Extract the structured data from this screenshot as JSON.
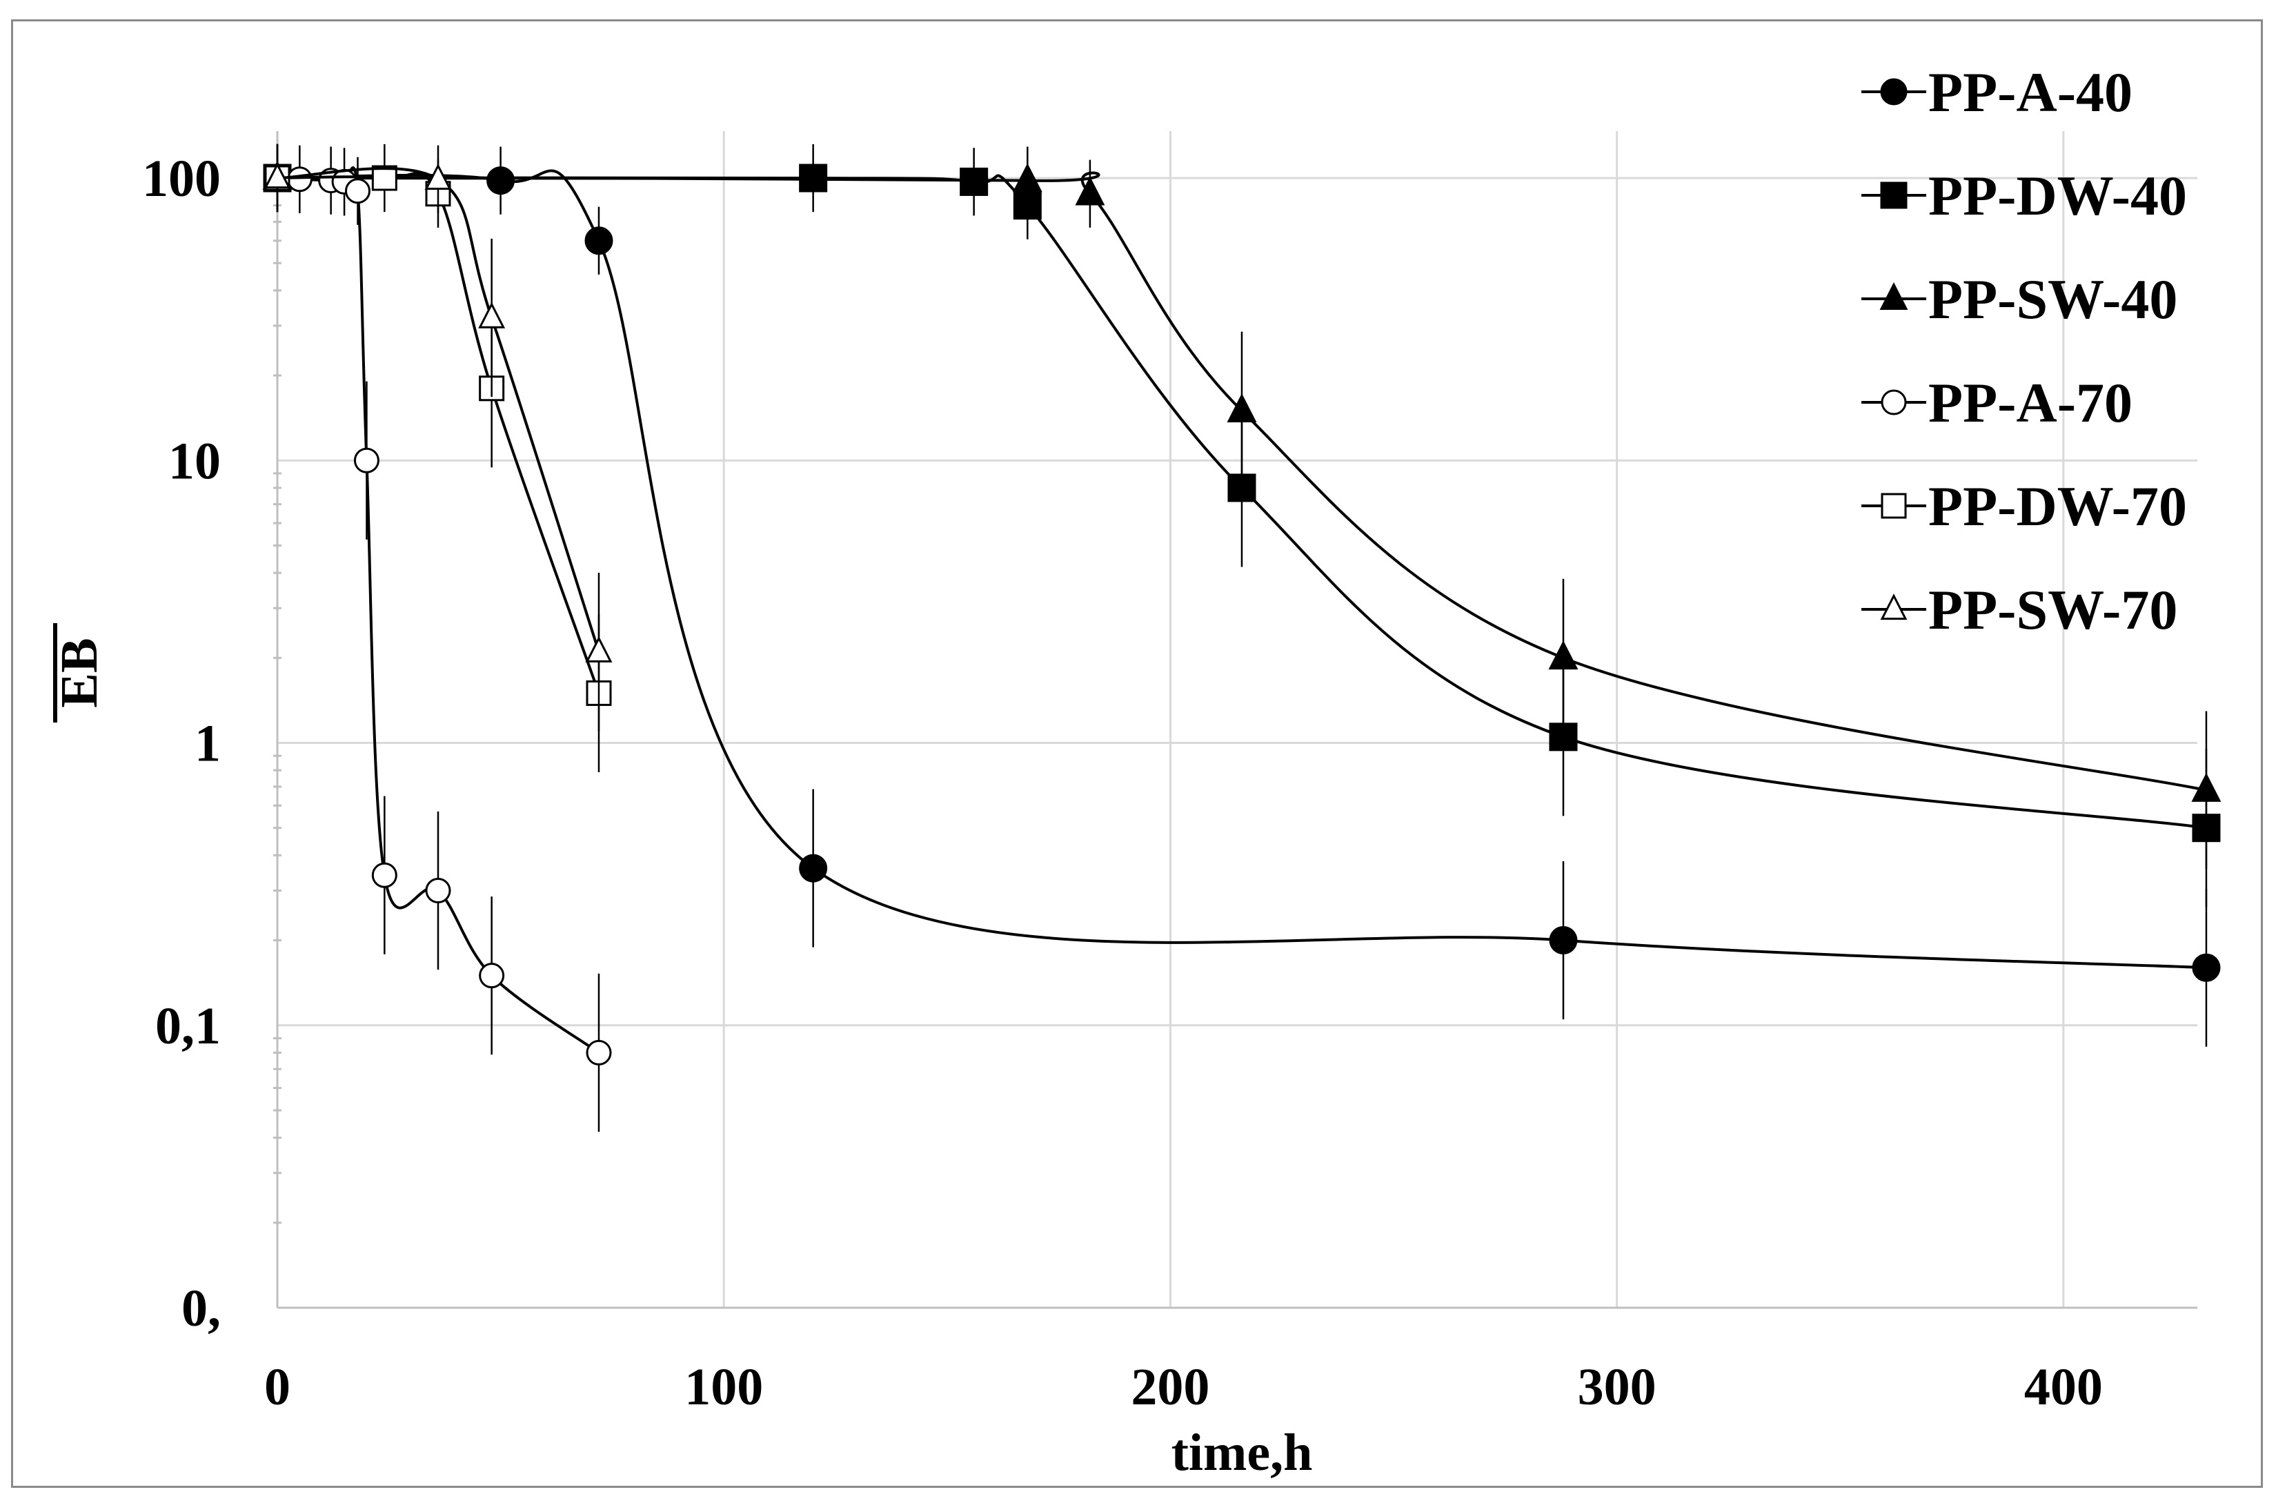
{
  "chart_data": {
    "type": "line",
    "title": "",
    "xlabel": "time,h",
    "ylabel": "EB",
    "xlim": [
      0,
      430
    ],
    "ylim": [
      0.01,
      100
    ],
    "yscale": "log",
    "xticks": [
      0,
      100,
      200,
      300,
      400
    ],
    "yticks": [
      0.01,
      0.1,
      1,
      10,
      100
    ],
    "xtick_labels": [
      "0",
      "100",
      "200",
      "300",
      "400"
    ],
    "ytick_labels": [
      "0,",
      "0,1",
      "1",
      "10",
      "100"
    ],
    "grid": true,
    "legend_position": "top-right",
    "series": [
      {
        "name": "PP-A-40",
        "marker": "circle",
        "filled": true,
        "x": [
          0,
          50,
          72,
          120,
          288,
          432
        ],
        "y": [
          100,
          98,
          60,
          0.36,
          0.2,
          0.16
        ]
      },
      {
        "name": "PP-DW-40",
        "marker": "square",
        "filled": true,
        "x": [
          0,
          120,
          156,
          168,
          216,
          288,
          432
        ],
        "y": [
          100,
          100,
          97,
          80,
          8,
          1.05,
          0.5
        ]
      },
      {
        "name": "PP-SW-40",
        "marker": "triangle",
        "filled": true,
        "x": [
          0,
          168,
          182,
          216,
          288,
          432
        ],
        "y": [
          100,
          98,
          88,
          15,
          2,
          0.68
        ]
      },
      {
        "name": "PP-A-70",
        "marker": "circle",
        "filled": false,
        "x": [
          0,
          5,
          12,
          15,
          18,
          20,
          24,
          36,
          48,
          72
        ],
        "y": [
          100,
          99,
          98,
          97,
          90,
          10,
          0.34,
          0.3,
          0.15,
          0.08
        ]
      },
      {
        "name": "PP-DW-70",
        "marker": "square",
        "filled": false,
        "x": [
          0,
          24,
          36,
          48,
          72
        ],
        "y": [
          100,
          100,
          88,
          18,
          1.5
        ]
      },
      {
        "name": "PP-SW-70",
        "marker": "triangle",
        "filled": false,
        "x": [
          0,
          36,
          48,
          72
        ],
        "y": [
          100,
          99,
          32,
          2.1
        ]
      }
    ]
  }
}
